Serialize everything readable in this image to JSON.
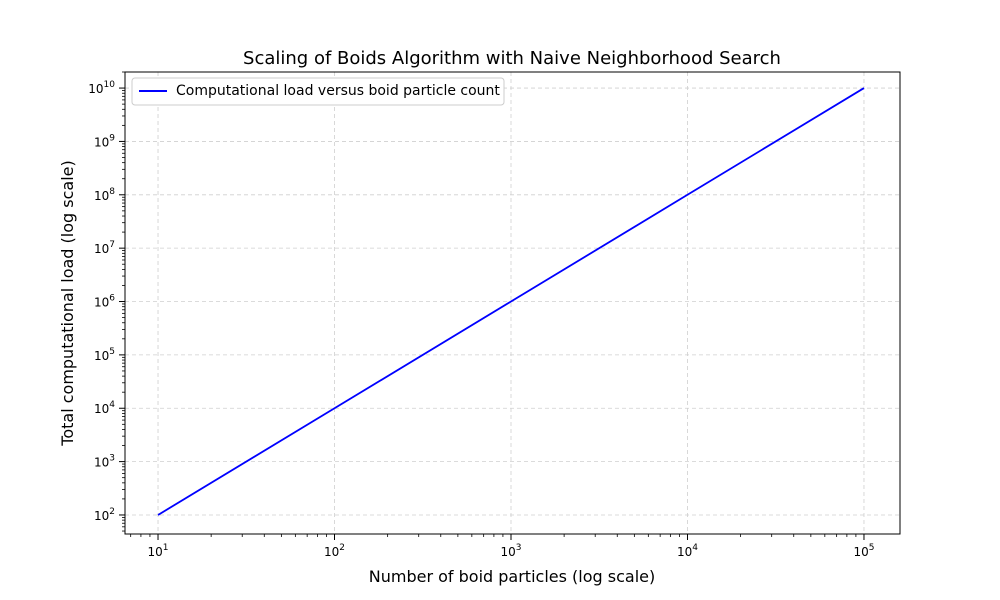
{
  "chart_data": {
    "type": "line",
    "title": "Scaling of Boids Algorithm with Naive Neighborhood Search",
    "xlabel": "Number of boid particles (log scale)",
    "ylabel": "Total computational load (log scale)",
    "xscale": "log",
    "yscale": "log",
    "xlim": [
      6.5,
      160000
    ],
    "ylim": [
      44,
      20000000000
    ],
    "x_ticks": [
      10,
      100,
      1000,
      10000,
      100000
    ],
    "y_ticks": [
      100,
      1000,
      10000,
      100000,
      1000000,
      10000000,
      100000000,
      1000000000,
      10000000000
    ],
    "grid": true,
    "legend_position": "top-left",
    "series": [
      {
        "name": "Computational load versus boid particle count",
        "color": "#0000ff",
        "x": [
          10,
          100,
          1000,
          10000,
          100000
        ],
        "y": [
          100,
          10000,
          1000000,
          100000000,
          10000000000
        ]
      }
    ]
  }
}
